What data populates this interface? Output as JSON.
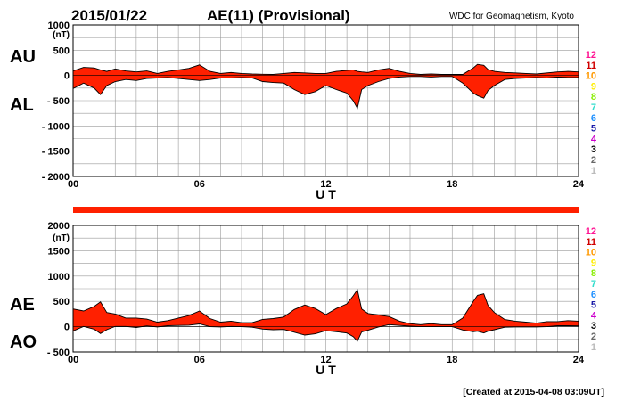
{
  "header": {
    "date": "2015/01/22",
    "title": "AE(11) (Provisional)",
    "source": "WDC for Geomagnetism, Kyoto"
  },
  "footer": {
    "created": "[Created at 2015-04-08 03:09UT]"
  },
  "station_legend": {
    "labels": [
      "12",
      "11",
      "10",
      "9",
      "8",
      "7",
      "6",
      "5",
      "4",
      "3",
      "2",
      "1"
    ],
    "colors": [
      "#ff1493",
      "#d00000",
      "#ff9900",
      "#ffee00",
      "#88ee00",
      "#33ddcc",
      "#1e90ff",
      "#1a1aa8",
      "#cc00cc",
      "#000000",
      "#666666",
      "#bbbbbb"
    ]
  },
  "chart_data": [
    {
      "type": "area",
      "name": "AU-AL",
      "side_labels": [
        "AU",
        "AL"
      ],
      "unit": "(nT)",
      "ylim": [
        -2000,
        1000
      ],
      "yticks": [
        1000,
        500,
        0,
        -500,
        -1000,
        -1500,
        -2000
      ],
      "ytick_labels": [
        "1000",
        "500",
        "0",
        "- 500",
        "- 1000",
        "- 1500",
        "- 2000"
      ],
      "xlim": [
        0,
        24
      ],
      "xticks": [
        0,
        6,
        12,
        18,
        24
      ],
      "xtick_labels": [
        "00",
        "06",
        "12",
        "18",
        "24"
      ],
      "xlabel": "U T",
      "fill_color": "#ff2000",
      "grid": true,
      "x": [
        0,
        0.5,
        1,
        1.3,
        1.6,
        2,
        2.5,
        3,
        3.5,
        4,
        4.5,
        5,
        5.5,
        6,
        6.5,
        7,
        7.5,
        8,
        8.5,
        9,
        9.5,
        10,
        10.5,
        11,
        11.5,
        12,
        12.5,
        13,
        13.3,
        13.5,
        13.7,
        14,
        14.5,
        15,
        15.5,
        16,
        16.5,
        17,
        17.5,
        18,
        18.5,
        19,
        19.2,
        19.5,
        19.7,
        20,
        20.5,
        21,
        21.5,
        22,
        22.5,
        23,
        23.5,
        24
      ],
      "series": [
        {
          "name": "AU",
          "values": [
            90,
            160,
            150,
            110,
            80,
            130,
            90,
            70,
            90,
            40,
            80,
            110,
            140,
            210,
            80,
            40,
            60,
            40,
            30,
            25,
            20,
            40,
            60,
            50,
            40,
            40,
            80,
            100,
            110,
            80,
            70,
            60,
            110,
            140,
            80,
            40,
            20,
            30,
            20,
            20,
            20,
            150,
            220,
            200,
            120,
            80,
            60,
            50,
            40,
            30,
            50,
            70,
            80,
            70
          ]
        },
        {
          "name": "AL",
          "values": [
            -260,
            -150,
            -250,
            -380,
            -200,
            -120,
            -80,
            -100,
            -60,
            -50,
            -40,
            -60,
            -80,
            -100,
            -80,
            -50,
            -50,
            -40,
            -50,
            -120,
            -140,
            -150,
            -280,
            -380,
            -320,
            -200,
            -280,
            -350,
            -500,
            -650,
            -280,
            -200,
            -120,
            -60,
            -30,
            -20,
            -20,
            -30,
            -20,
            -20,
            -150,
            -350,
            -400,
            -450,
            -300,
            -200,
            -80,
            -60,
            -50,
            -40,
            -50,
            -30,
            -40,
            -40
          ]
        }
      ]
    },
    {
      "type": "area",
      "name": "AE-AO",
      "side_labels": [
        "AE",
        "AO"
      ],
      "unit": "(nT)",
      "ylim": [
        -500,
        2000
      ],
      "yticks": [
        2000,
        1500,
        1000,
        500,
        0,
        -500
      ],
      "ytick_labels": [
        "2000",
        "1500",
        "1000",
        "500",
        "0",
        "- 500"
      ],
      "xlim": [
        0,
        24
      ],
      "xticks": [
        0,
        6,
        12,
        18,
        24
      ],
      "xtick_labels": [
        "00",
        "06",
        "12",
        "18",
        "24"
      ],
      "xlabel": "U T",
      "fill_color": "#ff2000",
      "grid": true,
      "x": [
        0,
        0.5,
        1,
        1.3,
        1.6,
        2,
        2.5,
        3,
        3.5,
        4,
        4.5,
        5,
        5.5,
        6,
        6.5,
        7,
        7.5,
        8,
        8.5,
        9,
        9.5,
        10,
        10.5,
        11,
        11.5,
        12,
        12.5,
        13,
        13.3,
        13.5,
        13.7,
        14,
        14.5,
        15,
        15.5,
        16,
        16.5,
        17,
        17.5,
        18,
        18.5,
        19,
        19.2,
        19.5,
        19.7,
        20,
        20.5,
        21,
        21.5,
        22,
        22.5,
        23,
        23.5,
        24
      ],
      "series": [
        {
          "name": "AE",
          "values": [
            350,
            310,
            400,
            490,
            280,
            250,
            170,
            170,
            150,
            90,
            120,
            170,
            220,
            310,
            160,
            90,
            110,
            80,
            80,
            145,
            160,
            190,
            340,
            430,
            360,
            240,
            360,
            450,
            610,
            730,
            350,
            260,
            230,
            200,
            110,
            60,
            40,
            60,
            40,
            40,
            170,
            500,
            620,
            650,
            420,
            280,
            140,
            110,
            90,
            70,
            100,
            100,
            120,
            110
          ]
        },
        {
          "name": "AO",
          "values": [
            -85,
            5,
            -50,
            -135,
            -60,
            5,
            5,
            -15,
            15,
            -5,
            20,
            25,
            30,
            55,
            0,
            -5,
            5,
            0,
            -10,
            -48,
            -60,
            -55,
            -110,
            -165,
            -140,
            -80,
            -100,
            -125,
            -195,
            -285,
            -105,
            -70,
            -5,
            40,
            25,
            10,
            0,
            0,
            0,
            0,
            -65,
            -100,
            -90,
            -125,
            -90,
            -60,
            -10,
            -5,
            -5,
            -5,
            0,
            20,
            20,
            15
          ]
        }
      ]
    }
  ]
}
